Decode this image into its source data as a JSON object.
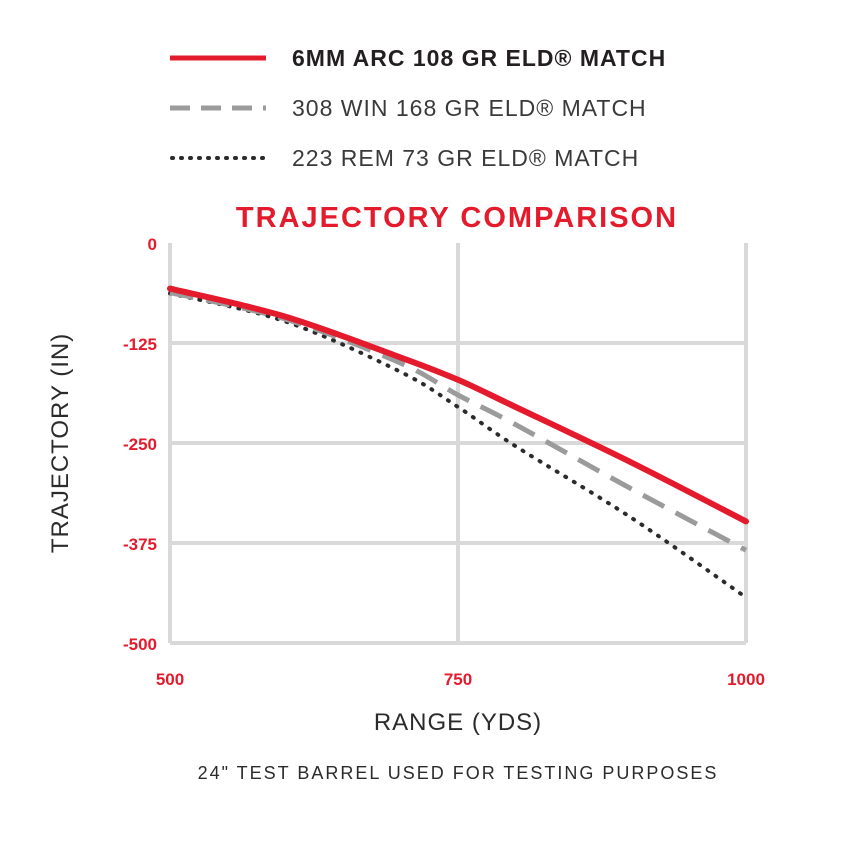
{
  "colors": {
    "accent": "#e31b2d",
    "grid": "#d9d9d9",
    "series_dashed": "#9b9b9b",
    "series_dotted": "#2b2b2b"
  },
  "chart_data": {
    "type": "line",
    "title": "TRAJECTORY COMPARISON",
    "xlabel": "RANGE (YDS)",
    "ylabel": "TRAJECTORY (IN)",
    "xlim": [
      500,
      1000
    ],
    "ylim": [
      -500,
      0
    ],
    "x_ticks": [
      "500",
      "750",
      "1000"
    ],
    "y_ticks": [
      "0",
      "-125",
      "-250",
      "-375",
      "-500"
    ],
    "grid": true,
    "legend_position": "top",
    "footnote": "24\" TEST BARREL USED FOR TESTING PURPOSES",
    "x": [
      500,
      600,
      700,
      750,
      800,
      900,
      1000
    ],
    "series": [
      {
        "name": "6MM ARC 108 GR ELD® MATCH",
        "style": "solid",
        "color": "#e31b2d",
        "values": [
          -57,
          -92,
          -143,
          -171,
          -205,
          -274,
          -348
        ]
      },
      {
        "name": "308 WIN 168 GR ELD® MATCH",
        "style": "dashed",
        "color": "#9b9b9b",
        "values": [
          -62,
          -95,
          -150,
          -190,
          -227,
          -307,
          -384
        ]
      },
      {
        "name": "223 REM 73 GR ELD® MATCH",
        "style": "dotted",
        "color": "#2b2b2b",
        "values": [
          -63,
          -98,
          -161,
          -205,
          -254,
          -343,
          -443
        ]
      }
    ]
  }
}
